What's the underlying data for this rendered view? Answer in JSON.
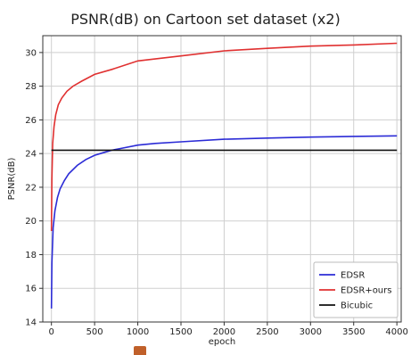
{
  "chart_data": {
    "type": "line",
    "title": "PSNR(dB) on Cartoon set dataset (x2)",
    "xlabel": "epoch",
    "ylabel": "PSNR(dB)",
    "xlim": [
      -100,
      4050
    ],
    "ylim": [
      14,
      31
    ],
    "xticks": [
      0,
      500,
      1000,
      1500,
      2000,
      2500,
      3000,
      3500,
      4000
    ],
    "yticks": [
      14,
      16,
      18,
      20,
      22,
      24,
      26,
      28,
      30
    ],
    "grid": true,
    "legend_position": "lower-right",
    "series": [
      {
        "name": "EDSR",
        "color": "#2b2bd6",
        "x": [
          0,
          5,
          20,
          40,
          70,
          100,
          150,
          200,
          300,
          400,
          500,
          600,
          700,
          800,
          1000,
          1200,
          1500,
          2000,
          2500,
          3000,
          3500,
          4000
        ],
        "y": [
          14.8,
          17.5,
          19.6,
          20.6,
          21.4,
          21.9,
          22.4,
          22.8,
          23.3,
          23.65,
          23.9,
          24.05,
          24.2,
          24.3,
          24.5,
          24.6,
          24.7,
          24.85,
          24.92,
          24.98,
          25.02,
          25.05
        ]
      },
      {
        "name": "EDSR+ours",
        "color": "#e03030",
        "x": [
          0,
          5,
          15,
          30,
          50,
          80,
          120,
          180,
          250,
          350,
          500,
          700,
          1000,
          1500,
          2000,
          2500,
          3000,
          3500,
          4000
        ],
        "y": [
          19.4,
          22.5,
          24.6,
          25.6,
          26.3,
          26.9,
          27.3,
          27.7,
          28.0,
          28.3,
          28.7,
          29.0,
          29.5,
          29.8,
          30.1,
          30.25,
          30.38,
          30.45,
          30.55
        ]
      },
      {
        "name": "Bicubic",
        "color": "#111111",
        "x": [
          0,
          4000
        ],
        "y": [
          24.2,
          24.2
        ]
      }
    ]
  }
}
